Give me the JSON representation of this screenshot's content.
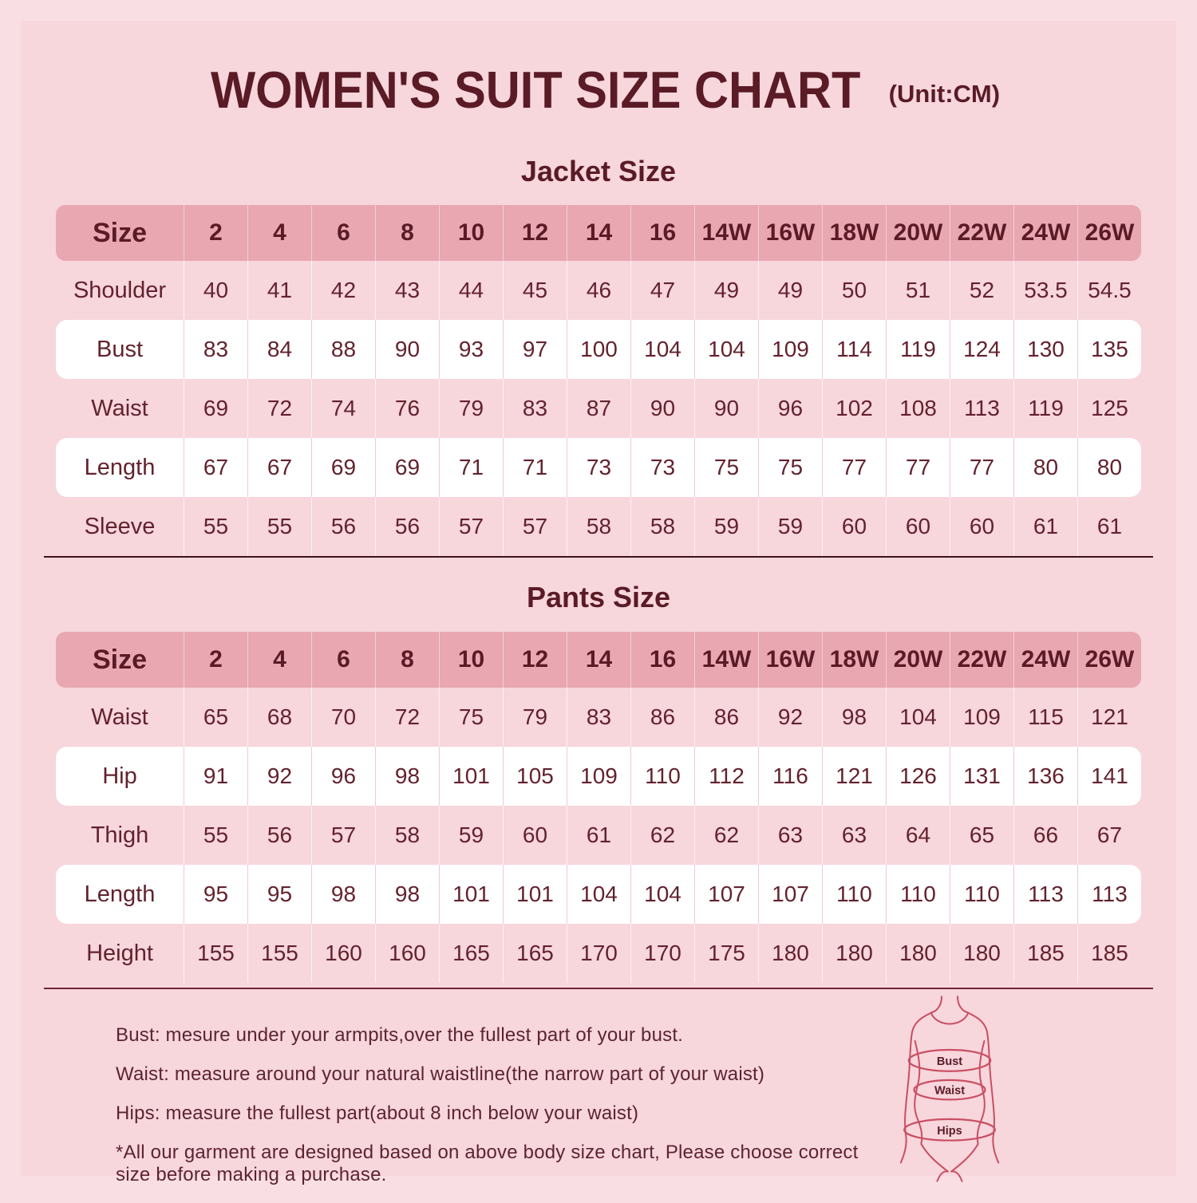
{
  "page": {
    "title": "WOMEN'S SUIT SIZE CHART",
    "unit": "(Unit:CM)"
  },
  "colors": {
    "background": "#f7d6dc",
    "frame": "#f9dfe4",
    "header_row": "#e9a7b2",
    "white_row": "#ffffff",
    "text": "#5a1b26",
    "figure_stroke": "#c94f63"
  },
  "jacket": {
    "heading": "Jacket Size",
    "header": [
      "Size",
      "2",
      "4",
      "6",
      "8",
      "10",
      "12",
      "14",
      "16",
      "14W",
      "16W",
      "18W",
      "20W",
      "22W",
      "24W",
      "26W"
    ],
    "rows": [
      {
        "label": "Shoulder",
        "values": [
          "40",
          "41",
          "42",
          "43",
          "44",
          "45",
          "46",
          "47",
          "49",
          "49",
          "50",
          "51",
          "52",
          "53.5",
          "54.5"
        ]
      },
      {
        "label": "Bust",
        "values": [
          "83",
          "84",
          "88",
          "90",
          "93",
          "97",
          "100",
          "104",
          "104",
          "109",
          "114",
          "119",
          "124",
          "130",
          "135"
        ]
      },
      {
        "label": "Waist",
        "values": [
          "69",
          "72",
          "74",
          "76",
          "79",
          "83",
          "87",
          "90",
          "90",
          "96",
          "102",
          "108",
          "113",
          "119",
          "125"
        ]
      },
      {
        "label": "Length",
        "values": [
          "67",
          "67",
          "69",
          "69",
          "71",
          "71",
          "73",
          "73",
          "75",
          "75",
          "77",
          "77",
          "77",
          "80",
          "80"
        ]
      },
      {
        "label": "Sleeve",
        "values": [
          "55",
          "55",
          "56",
          "56",
          "57",
          "57",
          "58",
          "58",
          "59",
          "59",
          "60",
          "60",
          "60",
          "61",
          "61"
        ]
      }
    ]
  },
  "pants": {
    "heading": "Pants Size",
    "header": [
      "Size",
      "2",
      "4",
      "6",
      "8",
      "10",
      "12",
      "14",
      "16",
      "14W",
      "16W",
      "18W",
      "20W",
      "22W",
      "24W",
      "26W"
    ],
    "rows": [
      {
        "label": "Waist",
        "values": [
          "65",
          "68",
          "70",
          "72",
          "75",
          "79",
          "83",
          "86",
          "86",
          "92",
          "98",
          "104",
          "109",
          "115",
          "121"
        ]
      },
      {
        "label": "Hip",
        "values": [
          "91",
          "92",
          "96",
          "98",
          "101",
          "105",
          "109",
          "110",
          "112",
          "116",
          "121",
          "126",
          "131",
          "136",
          "141"
        ]
      },
      {
        "label": "Thigh",
        "values": [
          "55",
          "56",
          "57",
          "58",
          "59",
          "60",
          "61",
          "62",
          "62",
          "63",
          "63",
          "64",
          "65",
          "66",
          "67"
        ]
      },
      {
        "label": "Length",
        "values": [
          "95",
          "95",
          "98",
          "98",
          "101",
          "101",
          "104",
          "104",
          "107",
          "107",
          "110",
          "110",
          "110",
          "113",
          "113"
        ]
      },
      {
        "label": "Height",
        "values": [
          "155",
          "155",
          "160",
          "160",
          "165",
          "165",
          "170",
          "170",
          "175",
          "180",
          "180",
          "180",
          "180",
          "185",
          "185"
        ]
      }
    ]
  },
  "notes": [
    "Bust: mesure under your armpits,over the fullest part of your bust.",
    "Waist: measure around your natural waistline(the narrow part of your waist)",
    "Hips: measure the fullest part(about 8 inch below your waist)",
    "*All our garment are designed based on above body size chart, Please choose correct size before making a purchase."
  ],
  "figure": {
    "bust_label": "Bust",
    "waist_label": "Waist",
    "hips_label": "Hips"
  }
}
